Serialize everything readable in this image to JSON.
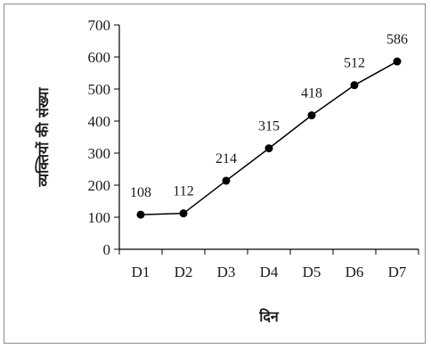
{
  "chart_data": {
    "type": "line",
    "title": "",
    "xlabel": "दिन",
    "ylabel": "व्यक्तियों की संख्या",
    "categories": [
      "D1",
      "D2",
      "D3",
      "D4",
      "D5",
      "D6",
      "D7"
    ],
    "series": [
      {
        "values": [
          108,
          112,
          214,
          315,
          418,
          512,
          586
        ]
      }
    ],
    "data_labels": [
      "108",
      "112",
      "214",
      "315",
      "418",
      "512",
      "586"
    ],
    "yticks": [
      0,
      100,
      200,
      300,
      400,
      500,
      600,
      700
    ],
    "ylim": [
      0,
      700
    ],
    "grid": false,
    "legend": "none",
    "colors": {
      "line": "#000000",
      "marker": "#000000"
    }
  }
}
